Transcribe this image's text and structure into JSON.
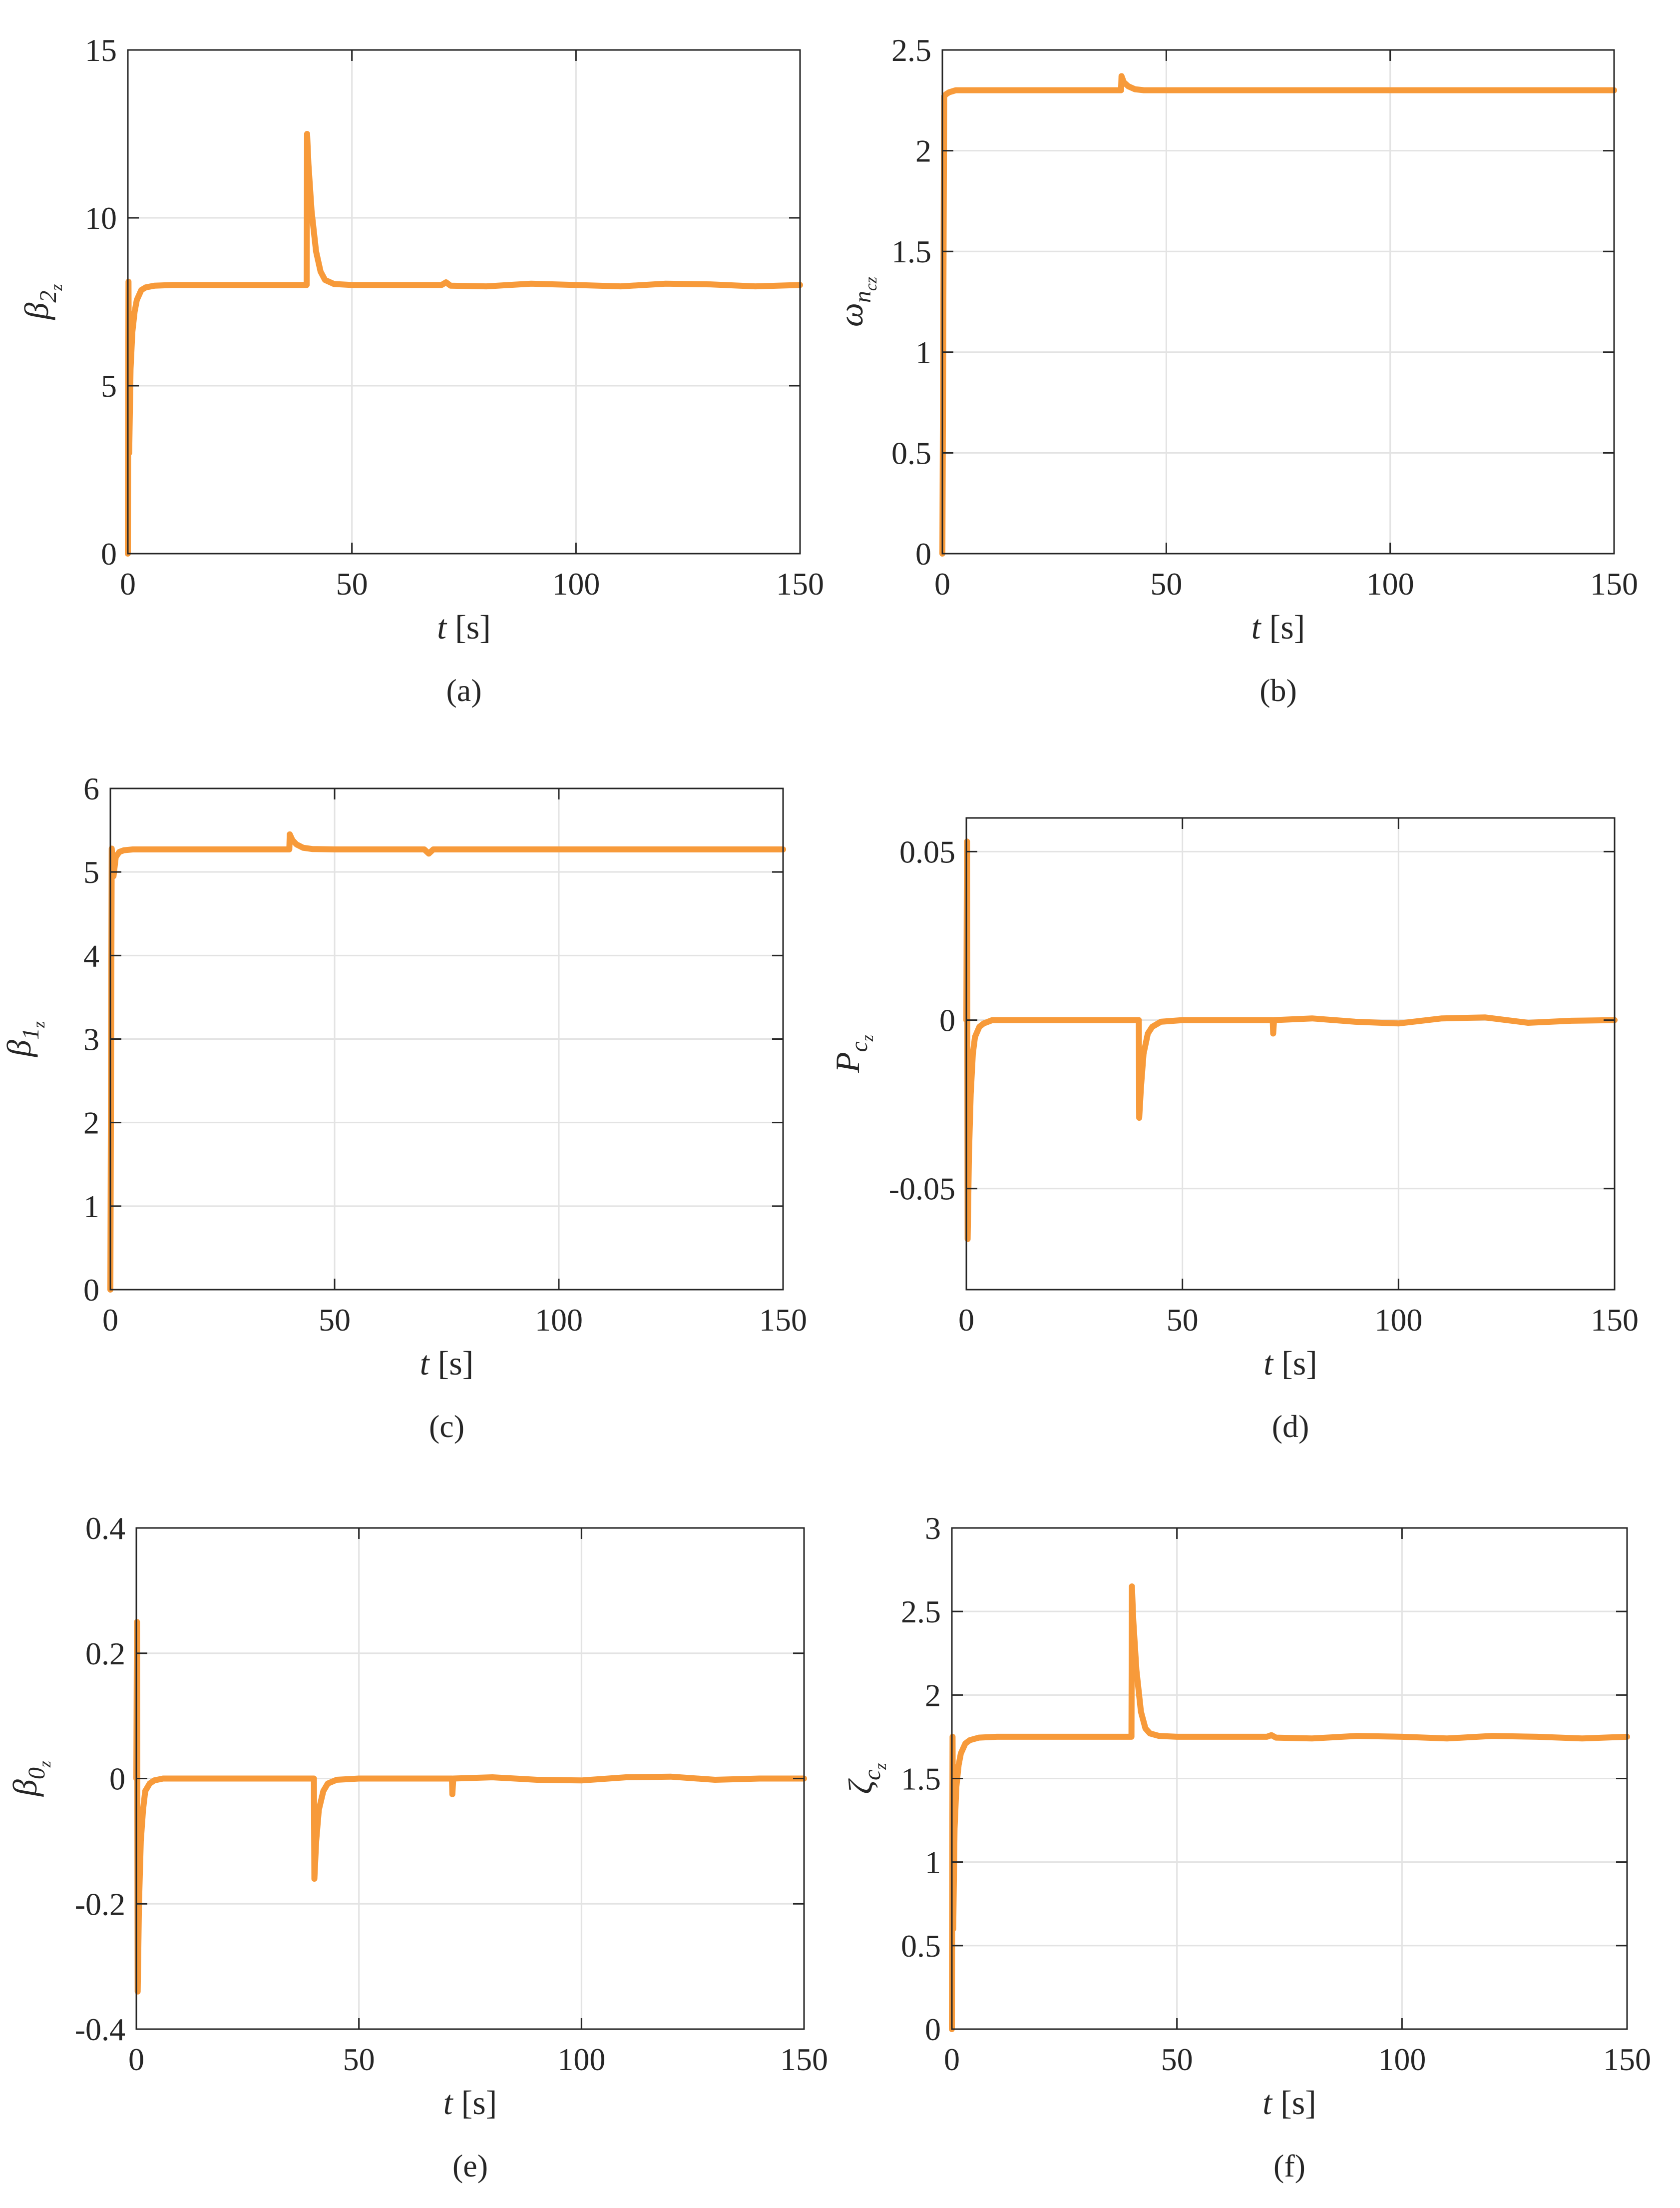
{
  "figure": {
    "line_color": "#F79A3A",
    "grid_color": "#e3e3e3",
    "axis_color": "#262626"
  },
  "chart_data": [
    {
      "type": "line",
      "caption": "(a)",
      "xlabel_var": "t",
      "xlabel_unit": "[s]",
      "ylabel_base": "β",
      "ylabel_sub": "2",
      "ylabel_subsub": "z",
      "xlim": [
        0,
        150
      ],
      "ylim": [
        0,
        15
      ],
      "xticks": [
        0,
        50,
        100,
        150
      ],
      "xtick_labels": [
        "0",
        "50",
        "100",
        "150"
      ],
      "yticks": [
        0,
        5,
        10,
        15
      ],
      "ytick_labels": [
        "0",
        "5",
        "10",
        "15"
      ],
      "grid": true,
      "series": [
        {
          "x": [
            0,
            0.15,
            0.3,
            0.6,
            1,
            1.5,
            2,
            3,
            4,
            6,
            10,
            20,
            39.9,
            40,
            40.3,
            41,
            42,
            43,
            44,
            46,
            50,
            60,
            70,
            71,
            72,
            80,
            90,
            100,
            110,
            120,
            130,
            140,
            150
          ],
          "y": [
            0,
            8.1,
            3.0,
            5.5,
            6.6,
            7.2,
            7.55,
            7.85,
            7.93,
            7.98,
            8.0,
            8.0,
            8.0,
            12.5,
            11.6,
            10.2,
            9.0,
            8.4,
            8.15,
            8.03,
            8.0,
            8.0,
            8.0,
            8.08,
            7.98,
            7.96,
            8.04,
            8.0,
            7.96,
            8.04,
            8.02,
            7.96,
            8.0
          ]
        }
      ]
    },
    {
      "type": "line",
      "caption": "(b)",
      "xlabel_var": "t",
      "xlabel_unit": "[s]",
      "ylabel_base": "ω",
      "ylabel_sub": "n",
      "ylabel_subsub": "cz",
      "xlim": [
        0,
        150
      ],
      "ylim": [
        0,
        2.5
      ],
      "xticks": [
        0,
        50,
        100,
        150
      ],
      "xtick_labels": [
        "0",
        "50",
        "100",
        "150"
      ],
      "yticks": [
        0,
        0.5,
        1,
        1.5,
        2,
        2.5
      ],
      "ytick_labels": [
        "0",
        "0.5",
        "1",
        "1.5",
        "2",
        "2.5"
      ],
      "grid": true,
      "series": [
        {
          "x": [
            0,
            0.4,
            0.8,
            1.5,
            3,
            5,
            10,
            39.9,
            40,
            40.5,
            41.5,
            43,
            45,
            50,
            150
          ],
          "y": [
            0,
            2.27,
            2.28,
            2.29,
            2.3,
            2.3,
            2.3,
            2.3,
            2.37,
            2.34,
            2.32,
            2.305,
            2.3,
            2.3,
            2.3
          ]
        }
      ]
    },
    {
      "type": "line",
      "caption": "(c)",
      "xlabel_var": "t",
      "xlabel_unit": "[s]",
      "ylabel_base": "β",
      "ylabel_sub": "1",
      "ylabel_subsub": "z",
      "xlim": [
        0,
        150
      ],
      "ylim": [
        0,
        6
      ],
      "xticks": [
        0,
        50,
        100,
        150
      ],
      "xtick_labels": [
        "0",
        "50",
        "100",
        "150"
      ],
      "yticks": [
        0,
        1,
        2,
        3,
        4,
        5,
        6
      ],
      "ytick_labels": [
        "0",
        "1",
        "2",
        "3",
        "4",
        "5",
        "6"
      ],
      "grid": true,
      "series": [
        {
          "x": [
            0,
            0.3,
            0.7,
            1.2,
            2,
            3,
            5,
            10,
            39.9,
            40,
            40.6,
            41.5,
            43,
            45,
            50,
            70,
            71,
            72,
            80,
            150
          ],
          "y": [
            0,
            5.28,
            4.95,
            5.18,
            5.24,
            5.26,
            5.27,
            5.27,
            5.27,
            5.45,
            5.38,
            5.33,
            5.29,
            5.275,
            5.27,
            5.27,
            5.22,
            5.27,
            5.27,
            5.27
          ]
        }
      ]
    },
    {
      "type": "line",
      "caption": "(d)",
      "xlabel_var": "t",
      "xlabel_unit": "[s]",
      "ylabel_base": "P",
      "ylabel_sub": "c",
      "ylabel_subsub": "z",
      "xlim": [
        0,
        150
      ],
      "ylim": [
        -0.08,
        0.06
      ],
      "xticks": [
        0,
        50,
        100,
        150
      ],
      "xtick_labels": [
        "0",
        "50",
        "100",
        "150"
      ],
      "yticks": [
        -0.05,
        0,
        0.05
      ],
      "ytick_labels": [
        "-0.05",
        "0",
        "0.05"
      ],
      "grid": true,
      "series": [
        {
          "x": [
            0,
            0.15,
            0.3,
            0.6,
            1,
            1.5,
            2,
            3,
            4,
            6,
            10,
            39.9,
            40,
            40.4,
            41,
            42,
            43,
            45,
            50,
            70.9,
            71,
            71.2,
            80,
            90,
            100,
            110,
            120,
            130,
            140,
            150
          ],
          "y": [
            0,
            0.053,
            -0.065,
            -0.04,
            -0.022,
            -0.01,
            -0.005,
            -0.002,
            -0.001,
            0,
            0,
            0,
            -0.029,
            -0.02,
            -0.01,
            -0.004,
            -0.002,
            -0.0005,
            0,
            0,
            -0.004,
            0,
            0.0005,
            -0.0005,
            -0.001,
            0.0005,
            0.0008,
            -0.0008,
            -0.0002,
            0
          ]
        }
      ]
    },
    {
      "type": "line",
      "caption": "(e)",
      "xlabel_var": "t",
      "xlabel_unit": "[s]",
      "ylabel_base": "β",
      "ylabel_sub": "0",
      "ylabel_subsub": "z",
      "xlim": [
        0,
        150
      ],
      "ylim": [
        -0.4,
        0.4
      ],
      "xticks": [
        0,
        50,
        100,
        150
      ],
      "xtick_labels": [
        "0",
        "50",
        "100",
        "150"
      ],
      "yticks": [
        -0.4,
        -0.2,
        0,
        0.2,
        0.4
      ],
      "ytick_labels": [
        "-0.4",
        "-0.2",
        "0",
        "0.2",
        "0.4"
      ],
      "grid": true,
      "series": [
        {
          "x": [
            0,
            0.15,
            0.3,
            0.6,
            1,
            1.5,
            2,
            3,
            4,
            6,
            10,
            39.9,
            40,
            40.4,
            41,
            42,
            43,
            45,
            50,
            70.9,
            71,
            71.2,
            80,
            90,
            100,
            110,
            120,
            130,
            140,
            150
          ],
          "y": [
            0,
            0.25,
            -0.34,
            -0.2,
            -0.1,
            -0.05,
            -0.02,
            -0.008,
            -0.003,
            0,
            0,
            0,
            -0.16,
            -0.1,
            -0.05,
            -0.02,
            -0.008,
            -0.002,
            0,
            0,
            -0.025,
            0,
            0.002,
            -0.002,
            -0.003,
            0.002,
            0.003,
            -0.002,
            0,
            0
          ]
        }
      ]
    },
    {
      "type": "line",
      "caption": "(f)",
      "xlabel_var": "t",
      "xlabel_unit": "[s]",
      "ylabel_base": "ζ",
      "ylabel_sub": "c",
      "ylabel_subsub": "z",
      "xlim": [
        0,
        150
      ],
      "ylim": [
        0,
        3
      ],
      "xticks": [
        0,
        50,
        100,
        150
      ],
      "xtick_labels": [
        "0",
        "50",
        "100",
        "150"
      ],
      "yticks": [
        0,
        0.5,
        1,
        1.5,
        2,
        2.5,
        3
      ],
      "ytick_labels": [
        "0",
        "0.5",
        "1",
        "1.5",
        "2",
        "2.5",
        "3"
      ],
      "grid": true,
      "series": [
        {
          "x": [
            0,
            0.15,
            0.3,
            0.6,
            1,
            1.5,
            2,
            3,
            4,
            6,
            10,
            20,
            39.9,
            40,
            40.3,
            41,
            42,
            43,
            44,
            46,
            50,
            60,
            70,
            71,
            72,
            80,
            90,
            100,
            110,
            120,
            130,
            140,
            150
          ],
          "y": [
            0,
            1.75,
            0.6,
            1.2,
            1.45,
            1.58,
            1.65,
            1.71,
            1.73,
            1.745,
            1.75,
            1.75,
            1.75,
            2.65,
            2.45,
            2.15,
            1.9,
            1.8,
            1.77,
            1.755,
            1.75,
            1.75,
            1.75,
            1.76,
            1.745,
            1.74,
            1.755,
            1.75,
            1.74,
            1.755,
            1.75,
            1.74,
            1.75
          ]
        }
      ]
    }
  ]
}
